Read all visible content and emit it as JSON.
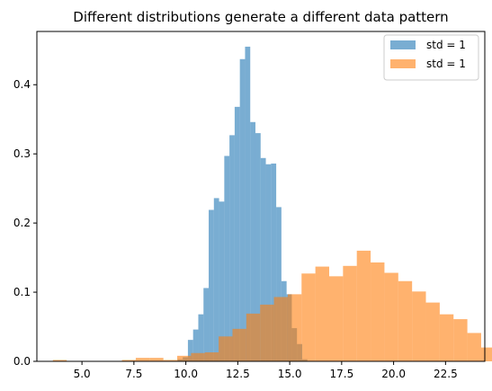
{
  "chart_data": {
    "type": "histogram",
    "title": "Different distributions generate a different data pattern",
    "xlabel": "",
    "ylabel": "",
    "xlim": [
      2.83,
      24.39
    ],
    "ylim": [
      0,
      0.477
    ],
    "x_ticks": [
      5.0,
      7.5,
      10.0,
      12.5,
      15.0,
      17.5,
      20.0,
      22.5
    ],
    "x_tick_labels": [
      "5.0",
      "7.5",
      "10.0",
      "12.5",
      "15.0",
      "17.5",
      "20.0",
      "22.5"
    ],
    "y_ticks": [
      0.0,
      0.1,
      0.2,
      0.3,
      0.4
    ],
    "y_tick_labels": [
      "0.0",
      "0.1",
      "0.2",
      "0.3",
      "0.4"
    ],
    "grid": false,
    "legend_position": "top-right",
    "series": [
      {
        "name": "std = 1",
        "color": "#1f77b4",
        "opacity": 0.6,
        "bin_start": 9.6,
        "bin_width": 0.25,
        "values": [
          0.003,
          0.006,
          0.031,
          0.046,
          0.068,
          0.106,
          0.219,
          0.236,
          0.231,
          0.297,
          0.327,
          0.368,
          0.437,
          0.455,
          0.346,
          0.33,
          0.294,
          0.285,
          0.286,
          0.223,
          0.116,
          0.097,
          0.048,
          0.025,
          0.003
        ]
      },
      {
        "name": "std = 1",
        "color": "#ff7f0e",
        "opacity": 0.6,
        "bin_start": 3.6,
        "bin_width": 0.665,
        "values": [
          0.002,
          0.0,
          0.0,
          0.0,
          0.0,
          0.002,
          0.005,
          0.005,
          0.002,
          0.008,
          0.012,
          0.013,
          0.036,
          0.047,
          0.069,
          0.082,
          0.093,
          0.097,
          0.127,
          0.137,
          0.123,
          0.138,
          0.16,
          0.143,
          0.128,
          0.116,
          0.101,
          0.085,
          0.068,
          0.061,
          0.041,
          0.02,
          0.014,
          0.011,
          0.004,
          0.003,
          0.002
        ]
      }
    ]
  }
}
